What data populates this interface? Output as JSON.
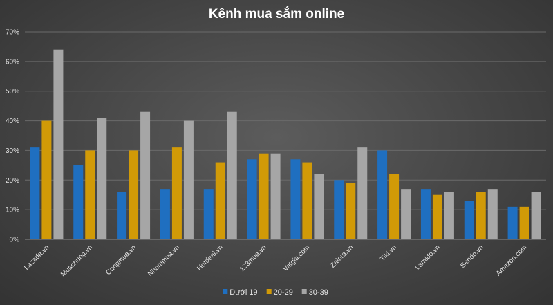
{
  "chart_data": {
    "type": "bar",
    "title": "Kênh mua sắm online",
    "xlabel": "",
    "ylabel": "",
    "ylim": [
      0,
      70
    ],
    "yticks": [
      0,
      10,
      20,
      30,
      40,
      50,
      60,
      70
    ],
    "ytick_suffix": "%",
    "grid": true,
    "legend_position": "bottom",
    "categories": [
      "Lazada.vn",
      "Muachung.vn",
      "Cungmua.vn",
      "Nhommua.vn",
      "Hotdeal.vn",
      "123mua.vn",
      "Vatgia.com",
      "Zalora.vn",
      "Tiki.vn",
      "Lamido.vn",
      "Sendo.vn",
      "Amazon.com"
    ],
    "series": [
      {
        "name": "Dưới 19",
        "color": "#1f6fc0",
        "values": [
          31,
          25,
          16,
          17,
          17,
          27,
          27,
          20,
          30,
          17,
          13,
          11
        ]
      },
      {
        "name": "20-29",
        "color": "#d19a07",
        "values": [
          40,
          30,
          30,
          31,
          26,
          29,
          26,
          19,
          22,
          15,
          16,
          11
        ]
      },
      {
        "name": "30-39",
        "color": "#a6a6a6",
        "values": [
          64,
          41,
          43,
          40,
          43,
          29,
          22,
          31,
          17,
          16,
          17,
          16
        ]
      }
    ]
  }
}
